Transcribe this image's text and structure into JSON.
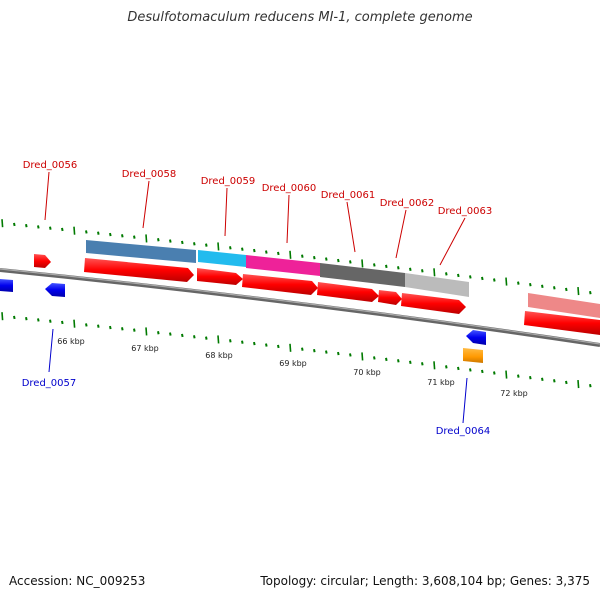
{
  "title": "Desulfotomaculum reducens MI-1, complete genome",
  "footer": {
    "accession": "Accession: NC_009253",
    "summary": "Topology: circular; Length: 3,608,104 bp; Genes: 3,375"
  },
  "colors": {
    "forward_gene": "#ff0000",
    "reverse_gene": "#0000ee",
    "orange_gene": "#ff9900",
    "tick": "#007a00",
    "backbone": "#888888",
    "label_forward": "#cc0000",
    "label_reverse": "#0000cc"
  },
  "axis": {
    "unit": "kbp",
    "tick_labels": [
      "66 kbp",
      "67 kbp",
      "68 kbp",
      "69 kbp",
      "70 kbp",
      "71 kbp",
      "72 kbp"
    ]
  },
  "labels": {
    "forward": [
      "Dred_0056",
      "Dred_0058",
      "Dred_0059",
      "Dred_0060",
      "Dred_0061",
      "Dred_0062",
      "Dred_0063"
    ],
    "reverse": [
      "Dred_0057",
      "Dred_0064"
    ]
  },
  "cog_colors": [
    "#4a7fb0",
    "#22bbee",
    "#ee2299",
    "#666666",
    "#bbbbbb",
    "#ee8888"
  ]
}
